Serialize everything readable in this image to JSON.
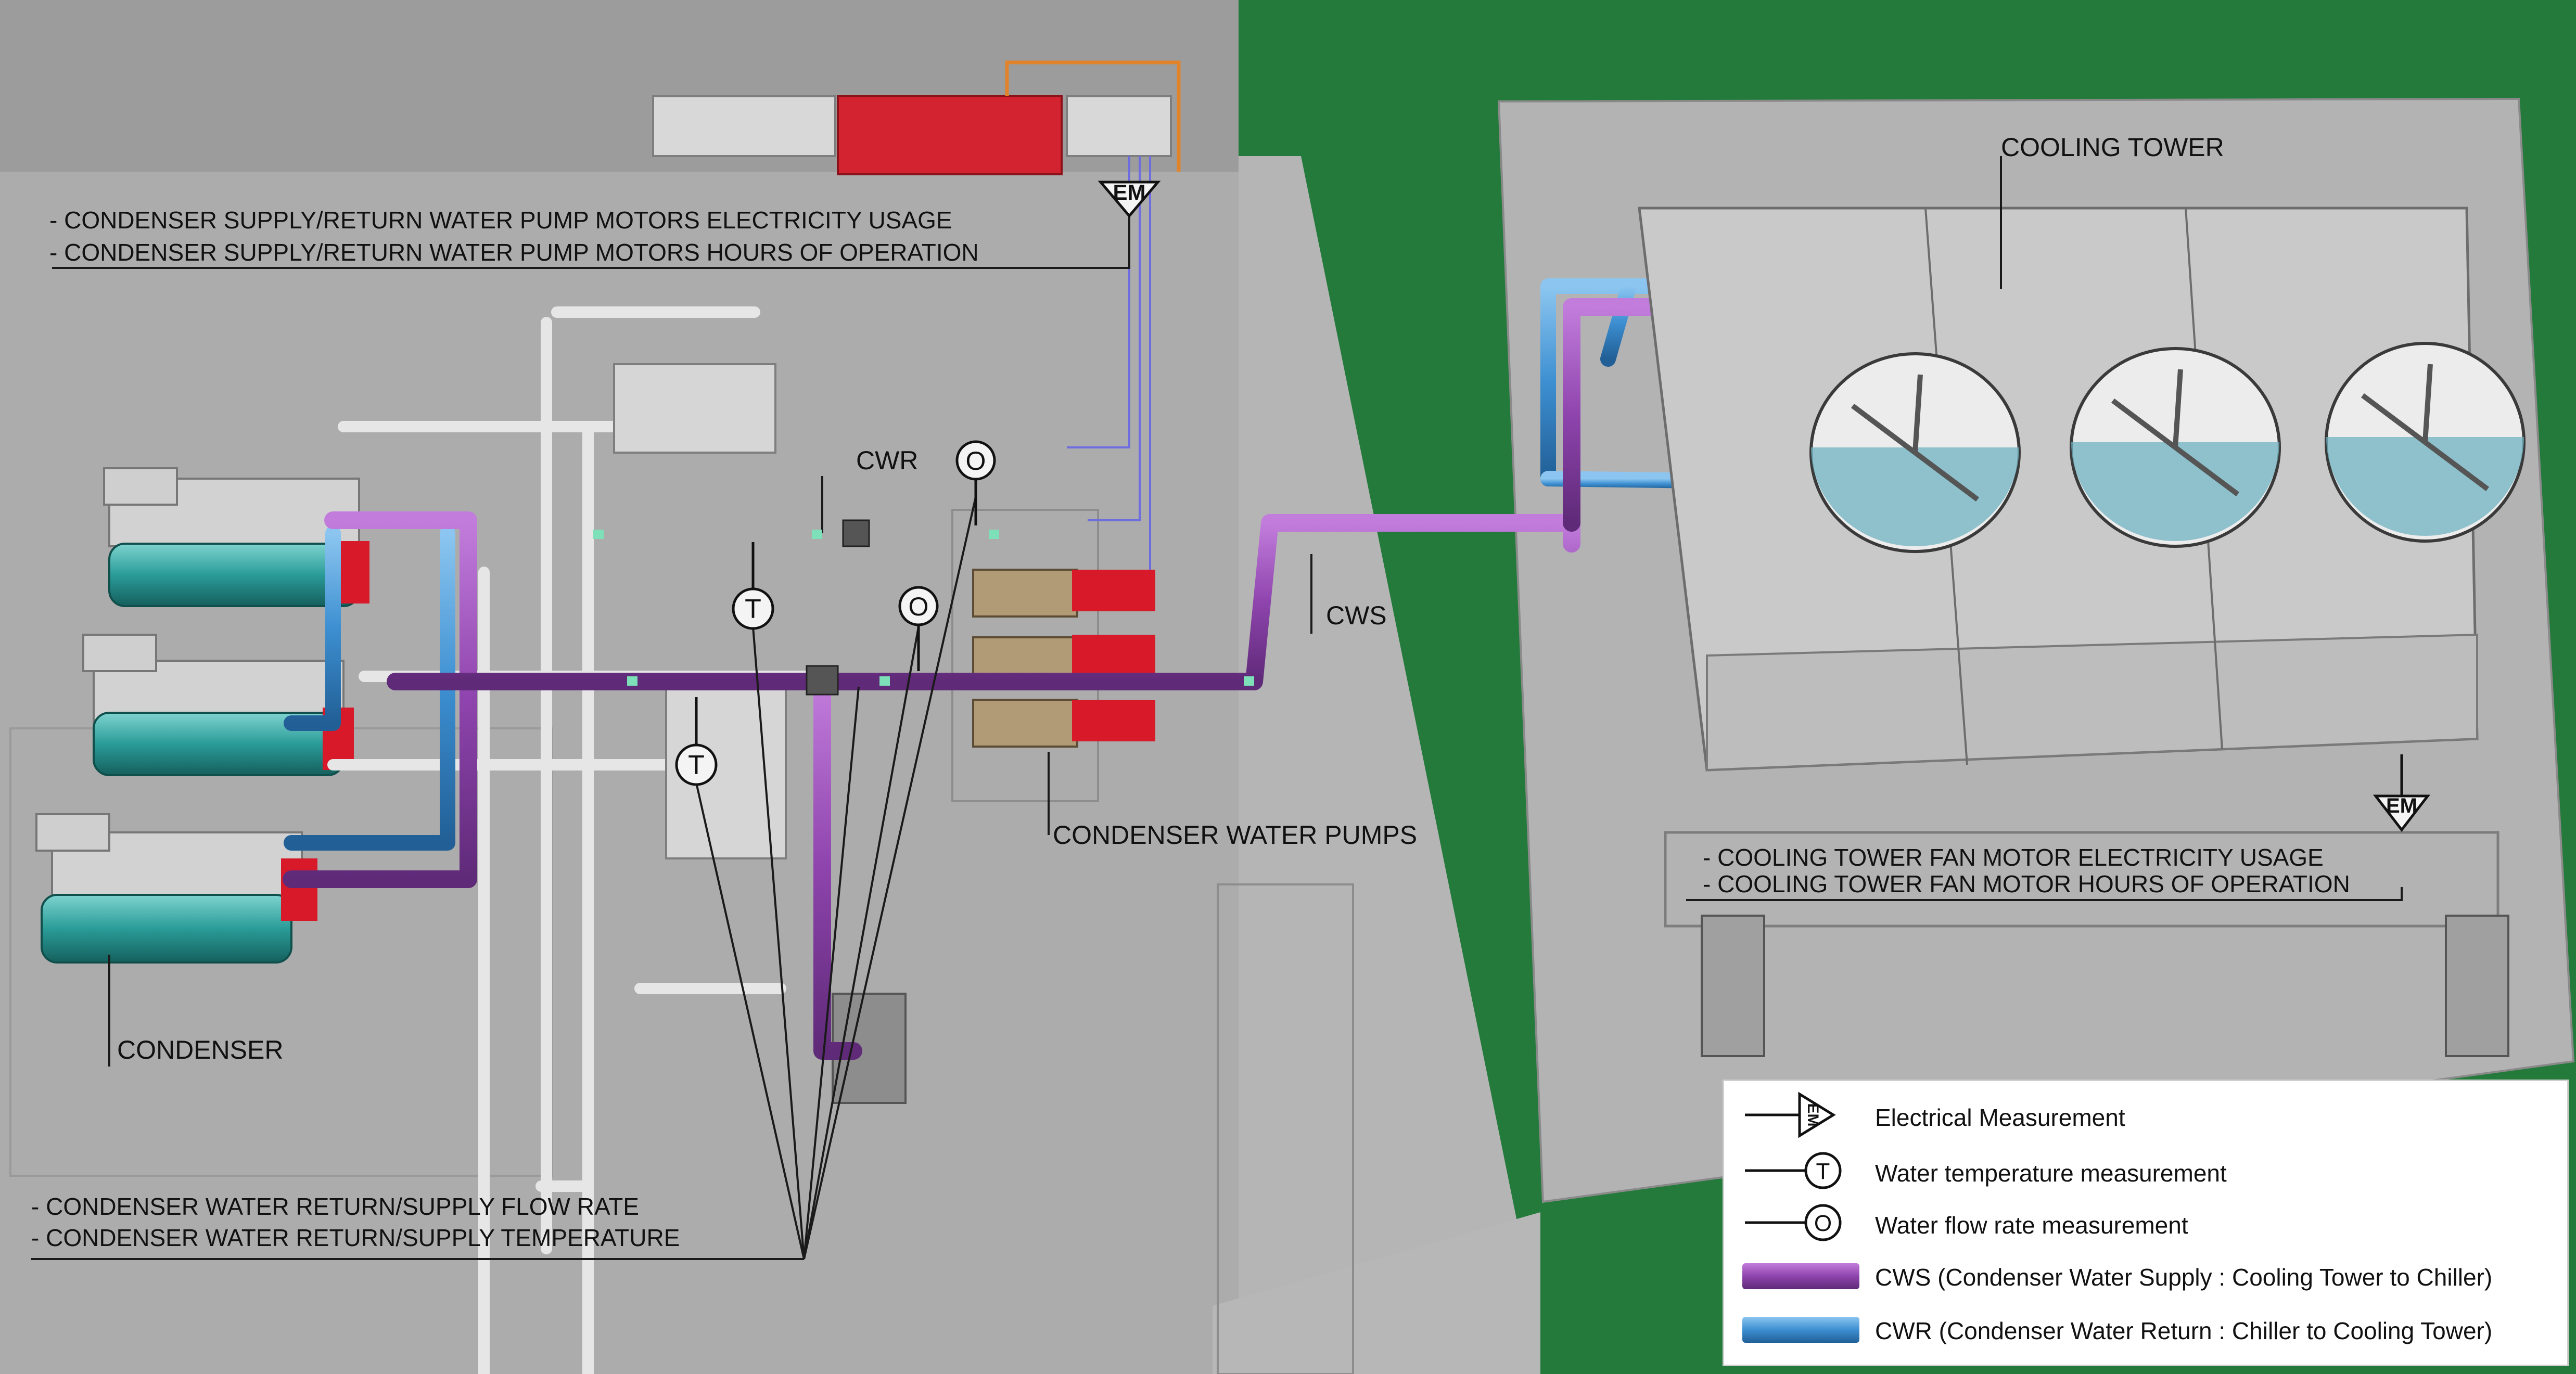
{
  "labels": {
    "cooling_tower": "COOLING TOWER",
    "cwr": "CWR",
    "cws": "CWS",
    "condenser_water_pumps": "CONDENSER WATER PUMPS",
    "condenser": "CONDENSER",
    "em": "EM"
  },
  "annotations": {
    "pump_power_1": "-    CONDENSER SUPPLY/RETURN WATER PUMP MOTORS ELECTRICITY USAGE",
    "pump_power_2": "-    CONDENSER SUPPLY/RETURN WATER PUMP MOTORS HOURS OF OPERATION",
    "tower_fan_1": "-    COOLING TOWER FAN MOTOR ELECTRICITY USAGE",
    "tower_fan_2": "-    COOLING TOWER FAN MOTOR HOURS OF OPERATION",
    "water_1": "- CONDENSER WATER RETURN/SUPPLY FLOW RATE",
    "water_2": "- CONDENSER WATER RETURN/SUPPLY TEMPERATURE"
  },
  "legend": {
    "items": [
      {
        "symbol": "em-icon",
        "label": "Electrical Measurement"
      },
      {
        "symbol": "temperature-sensor-icon",
        "label": "Water temperature measurement"
      },
      {
        "symbol": "flow-sensor-icon",
        "label": "Water flow rate measurement"
      },
      {
        "symbol": "cws-pipe",
        "label": "CWS (Condenser Water Supply : Cooling Tower to Chiller)"
      },
      {
        "symbol": "cwr-pipe",
        "label": "CWR (Condenser Water Return : Chiller to Cooling Tower)"
      }
    ]
  },
  "sensor_glyphs": {
    "temperature": "T",
    "flow": "O"
  },
  "colors": {
    "cws": "#8e44ad",
    "cwr": "#3d8fd1",
    "grass": "#237a3a",
    "floor": "#a9a9a9",
    "condenser_tank": "#2a9c98",
    "pump_red": "#d7192a",
    "panel_red": "#d42330"
  }
}
